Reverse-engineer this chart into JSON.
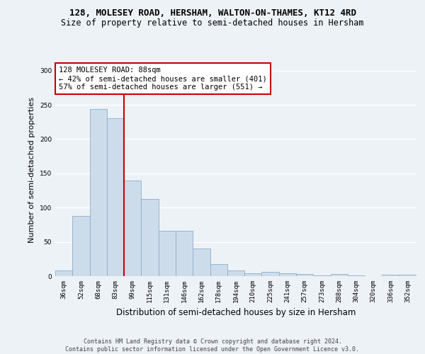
{
  "title": "128, MOLESEY ROAD, HERSHAM, WALTON-ON-THAMES, KT12 4RD",
  "subtitle": "Size of property relative to semi-detached houses in Hersham",
  "xlabel": "Distribution of semi-detached houses by size in Hersham",
  "ylabel": "Number of semi-detached properties",
  "categories": [
    "36sqm",
    "52sqm",
    "68sqm",
    "83sqm",
    "99sqm",
    "115sqm",
    "131sqm",
    "146sqm",
    "162sqm",
    "178sqm",
    "194sqm",
    "210sqm",
    "225sqm",
    "241sqm",
    "257sqm",
    "273sqm",
    "288sqm",
    "304sqm",
    "320sqm",
    "336sqm",
    "352sqm"
  ],
  "values": [
    8,
    88,
    244,
    230,
    140,
    113,
    66,
    66,
    40,
    18,
    8,
    4,
    6,
    4,
    3,
    1,
    3,
    1,
    0,
    2,
    2
  ],
  "bar_color": "#cddceb",
  "bar_edge_color": "#8aaec8",
  "vline_color": "#cc0000",
  "vline_x": 3.5,
  "annotation_text": "128 MOLESEY ROAD: 88sqm\n← 42% of semi-detached houses are smaller (401)\n57% of semi-detached houses are larger (551) →",
  "annotation_box_color": "#ffffff",
  "annotation_border_color": "#cc0000",
  "footer_text": "Contains HM Land Registry data © Crown copyright and database right 2024.\nContains public sector information licensed under the Open Government Licence v3.0.",
  "ylim": [
    0,
    310
  ],
  "yticks": [
    0,
    50,
    100,
    150,
    200,
    250,
    300
  ],
  "background_color": "#edf2f7",
  "grid_color": "#ffffff",
  "title_fontsize": 9,
  "subtitle_fontsize": 8.5,
  "ylabel_fontsize": 8,
  "xlabel_fontsize": 8.5,
  "tick_fontsize": 6.5,
  "ann_fontsize": 7.5,
  "footer_fontsize": 6
}
